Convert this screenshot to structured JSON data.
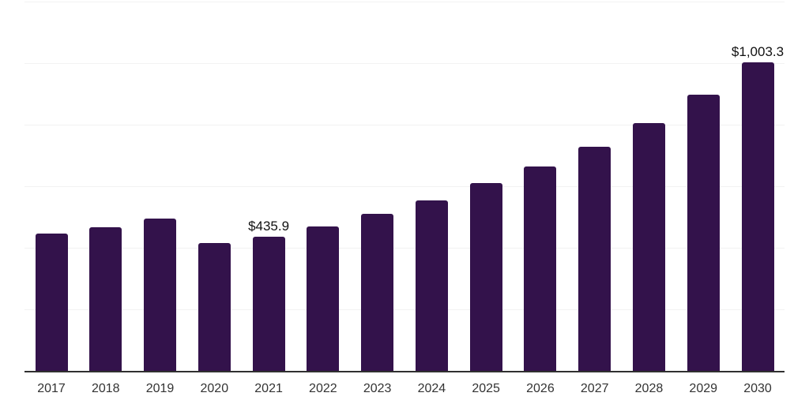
{
  "chart_data": {
    "type": "bar",
    "title": "",
    "xlabel": "",
    "ylabel": "",
    "categories": [
      "2017",
      "2018",
      "2019",
      "2020",
      "2021",
      "2022",
      "2023",
      "2024",
      "2025",
      "2026",
      "2027",
      "2028",
      "2029",
      "2030"
    ],
    "values": [
      446,
      467,
      495,
      416,
      435.9,
      470,
      511,
      554,
      611,
      665,
      729,
      806,
      898,
      1003.3
    ],
    "annotations": [
      {
        "category": "2021",
        "text": "$435.9"
      },
      {
        "category": "2030",
        "text": "$1,003.3"
      }
    ],
    "ylim": [
      0,
      1200
    ],
    "gridline_step": 200,
    "grid": true,
    "legend": false,
    "colors": {
      "bar": "#33124b",
      "gridline": "#f2f2f2",
      "axis": "#303030",
      "tick_label": "#333333",
      "value_label": "#111111",
      "background": "#ffffff"
    }
  }
}
